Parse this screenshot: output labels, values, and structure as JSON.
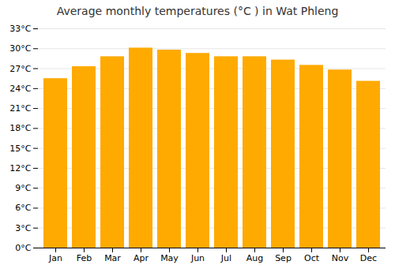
{
  "chart_data": {
    "type": "bar",
    "title": "Average monthly temperatures (°C ) in Wat Phleng",
    "categories": [
      "Jan",
      "Feb",
      "Mar",
      "Apr",
      "May",
      "Jun",
      "Jul",
      "Aug",
      "Sep",
      "Oct",
      "Nov",
      "Dec"
    ],
    "values": [
      25.5,
      27.3,
      28.8,
      30.1,
      29.8,
      29.3,
      28.8,
      28.8,
      28.3,
      27.5,
      26.8,
      25.1
    ],
    "color": "#FFAA00",
    "ylim": [
      0,
      33
    ],
    "yticks": [
      {
        "value": 0,
        "label": "0°C"
      },
      {
        "value": 3,
        "label": "3°C"
      },
      {
        "value": 6,
        "label": "6°C"
      },
      {
        "value": 9,
        "label": "9°C"
      },
      {
        "value": 12,
        "label": "12°C"
      },
      {
        "value": 15,
        "label": "15°C"
      },
      {
        "value": 18,
        "label": "18°C"
      },
      {
        "value": 21,
        "label": "21°C"
      },
      {
        "value": 24,
        "label": "24°C"
      },
      {
        "value": 27,
        "label": "27°C"
      },
      {
        "value": 30,
        "label": "30°C"
      },
      {
        "value": 33,
        "label": "33°C"
      }
    ],
    "grid": true
  }
}
